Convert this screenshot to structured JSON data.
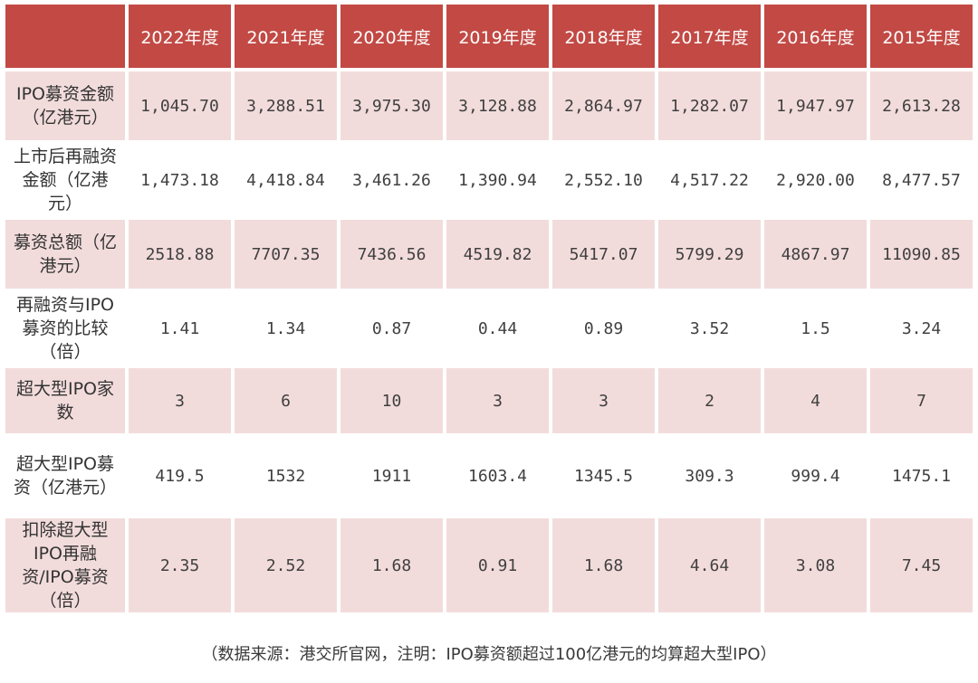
{
  "chart_data": {
    "type": "table",
    "columns": [
      "2022年度",
      "2021年度",
      "2020年度",
      "2019年度",
      "2018年度",
      "2017年度",
      "2016年度",
      "2015年度"
    ],
    "rows": [
      {
        "label": "IPO募资金额（亿港元）",
        "values": [
          "1,045.70",
          "3,288.51",
          "3,975.30",
          "3,128.88",
          "2,864.97",
          "1,282.07",
          "1,947.97",
          "2,613.28"
        ]
      },
      {
        "label": "上市后再融资金额（亿港元）",
        "values": [
          "1,473.18",
          "4,418.84",
          "3,461.26",
          "1,390.94",
          "2,552.10",
          "4,517.22",
          "2,920.00",
          "8,477.57"
        ]
      },
      {
        "label": "募资总额（亿港元）",
        "values": [
          "2518.88",
          "7707.35",
          "7436.56",
          "4519.82",
          "5417.07",
          "5799.29",
          "4867.97",
          "11090.85"
        ]
      },
      {
        "label": "再融资与IPO募资的比较（倍）",
        "values": [
          "1.41",
          "1.34",
          "0.87",
          "0.44",
          "0.89",
          "3.52",
          "1.5",
          "3.24"
        ]
      },
      {
        "label": "超大型IPO家数",
        "values": [
          "3",
          "6",
          "10",
          "3",
          "3",
          "2",
          "4",
          "7"
        ]
      },
      {
        "label": "超大型IPO募资（亿港元）",
        "values": [
          "419.5",
          "1532",
          "1911",
          "1603.4",
          "1345.5",
          "309.3",
          "999.4",
          "1475.1"
        ]
      },
      {
        "label": "扣除超大型IPO再融资/IPO募资（倍）",
        "values": [
          "2.35",
          "2.52",
          "1.68",
          "0.91",
          "1.68",
          "4.64",
          "3.08",
          "7.45"
        ]
      }
    ],
    "note": "（数据来源：港交所官网，注明：IPO募资额超过100亿港元的均算超大型IPO）",
    "layout": {
      "header_bg": "#c24944",
      "header_text_color": "#ffffff",
      "alt_row_bg": "#f2dcdb",
      "grid": "white 4px cell spacing, rows alternate pink/white"
    }
  }
}
